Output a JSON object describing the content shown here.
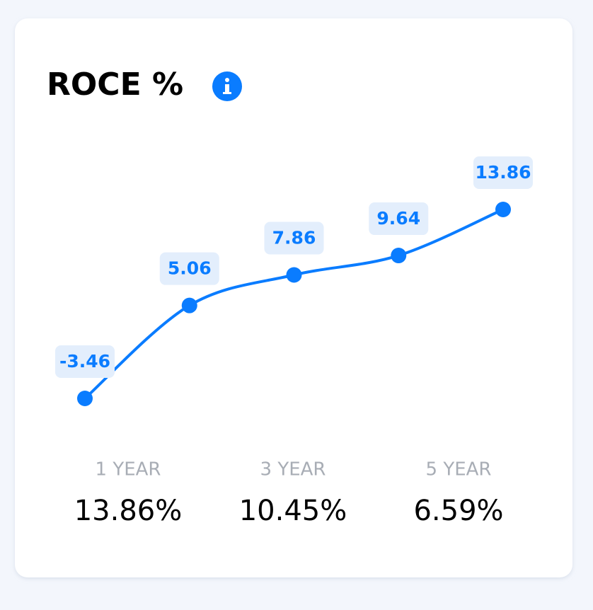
{
  "chart_data": {
    "type": "line",
    "title": "ROCE %",
    "categories": [
      null,
      null,
      null,
      null,
      null
    ],
    "values": [
      -3.46,
      5.06,
      7.86,
      9.64,
      13.86
    ],
    "color": "#0a7cff"
  },
  "summary": [
    {
      "label": "1 YEAR",
      "value": "13.86%"
    },
    {
      "label": "3 YEAR",
      "value": "10.45%"
    },
    {
      "label": "5 YEAR",
      "value": "6.59%"
    }
  ]
}
